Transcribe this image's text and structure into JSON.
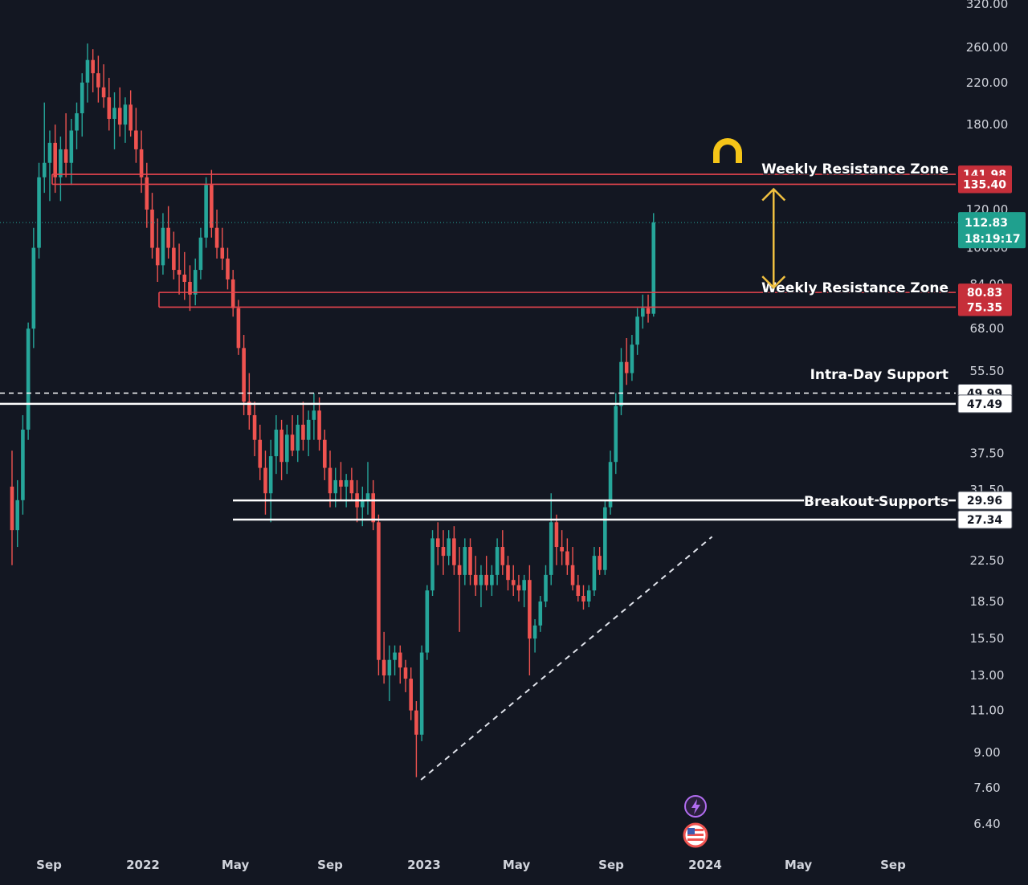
{
  "chart_data": {
    "type": "candlestick",
    "colors": {
      "background": "#131722",
      "up": "#26a69a",
      "down": "#ef5350",
      "resistance": "#e8454e",
      "support": "#ffffff",
      "arrow": "#f0c040",
      "magnet": "#f5c518",
      "last_price": "#26a69a",
      "text": "#d1d4dc"
    },
    "y_scale": "log",
    "ylim": [
      5.6,
      320
    ],
    "y_ticks": [
      "320.00",
      "260.00",
      "220.00",
      "180.00",
      "120.00",
      "100.00",
      "84.00",
      "68.00",
      "55.50",
      "37.50",
      "31.50",
      "22.50",
      "18.50",
      "15.50",
      "13.00",
      "11.00",
      "9.00",
      "7.60",
      "6.40"
    ],
    "x_ticks": [
      "Sep",
      "2022",
      "May",
      "Sep",
      "2023",
      "May",
      "Sep",
      "2024",
      "May",
      "Sep"
    ],
    "x_ticks_bold": [
      "2022",
      "2023",
      "2024"
    ],
    "zones": [
      {
        "label": "Weekly Resistance Zone",
        "high": 141.98,
        "low": 135.4,
        "high_label": "141.98",
        "low_label": "135.40",
        "kind": "resistance"
      },
      {
        "label": "Weekly Resistance Zone",
        "high": 80.83,
        "low": 75.35,
        "high_label": "80.83",
        "low_label": "75.35",
        "kind": "resistance"
      },
      {
        "label": "Intra-Day Support",
        "dashed": 49.99,
        "solid": 47.49,
        "high_label": "49.99",
        "low_label": "47.49",
        "kind": "support"
      },
      {
        "label": "Breakout Supports",
        "high": 29.96,
        "low": 27.34,
        "high_label": "29.96",
        "low_label": "27.34",
        "kind": "support"
      }
    ],
    "last_price": {
      "value": 112.83,
      "price_label": "112.83",
      "countdown": "18:19:17"
    },
    "trendline": {
      "from": {
        "date": "2022-12-28",
        "value": 7.9
      },
      "to": {
        "date": "2024-01-10",
        "value": 25.2
      }
    },
    "arrow": {
      "date": "2024-04-01",
      "from": 135.4,
      "to": 80.83
    },
    "candles": [
      {
        "d": "2021-07-15",
        "o": 32,
        "h": 38,
        "l": 22,
        "c": 26
      },
      {
        "d": "2021-07-22",
        "o": 26,
        "h": 33,
        "l": 24,
        "c": 30
      },
      {
        "d": "2021-07-29",
        "o": 30,
        "h": 45,
        "l": 28,
        "c": 42
      },
      {
        "d": "2021-08-05",
        "o": 42,
        "h": 70,
        "l": 40,
        "c": 68
      },
      {
        "d": "2021-08-12",
        "o": 68,
        "h": 110,
        "l": 62,
        "c": 100
      },
      {
        "d": "2021-08-19",
        "o": 100,
        "h": 150,
        "l": 95,
        "c": 140
      },
      {
        "d": "2021-08-26",
        "o": 140,
        "h": 200,
        "l": 130,
        "c": 150
      },
      {
        "d": "2021-09-02",
        "o": 150,
        "h": 175,
        "l": 125,
        "c": 165
      },
      {
        "d": "2021-09-09",
        "o": 165,
        "h": 180,
        "l": 130,
        "c": 140
      },
      {
        "d": "2021-09-16",
        "o": 140,
        "h": 170,
        "l": 125,
        "c": 160
      },
      {
        "d": "2021-09-23",
        "o": 160,
        "h": 190,
        "l": 140,
        "c": 150
      },
      {
        "d": "2021-09-30",
        "o": 150,
        "h": 185,
        "l": 135,
        "c": 175
      },
      {
        "d": "2021-10-07",
        "o": 175,
        "h": 200,
        "l": 160,
        "c": 190
      },
      {
        "d": "2021-10-14",
        "o": 190,
        "h": 230,
        "l": 170,
        "c": 220
      },
      {
        "d": "2021-10-21",
        "o": 220,
        "h": 265,
        "l": 200,
        "c": 245
      },
      {
        "d": "2021-10-28",
        "o": 245,
        "h": 258,
        "l": 210,
        "c": 230
      },
      {
        "d": "2021-11-04",
        "o": 230,
        "h": 250,
        "l": 200,
        "c": 215
      },
      {
        "d": "2021-11-11",
        "o": 215,
        "h": 240,
        "l": 195,
        "c": 205
      },
      {
        "d": "2021-11-18",
        "o": 205,
        "h": 225,
        "l": 175,
        "c": 185
      },
      {
        "d": "2021-11-25",
        "o": 185,
        "h": 210,
        "l": 160,
        "c": 195
      },
      {
        "d": "2021-12-02",
        "o": 195,
        "h": 215,
        "l": 170,
        "c": 180
      },
      {
        "d": "2021-12-09",
        "o": 180,
        "h": 205,
        "l": 165,
        "c": 198
      },
      {
        "d": "2021-12-16",
        "o": 198,
        "h": 212,
        "l": 170,
        "c": 175
      },
      {
        "d": "2021-12-23",
        "o": 175,
        "h": 195,
        "l": 150,
        "c": 160
      },
      {
        "d": "2021-12-30",
        "o": 160,
        "h": 175,
        "l": 130,
        "c": 140
      },
      {
        "d": "2022-01-06",
        "o": 140,
        "h": 150,
        "l": 110,
        "c": 120
      },
      {
        "d": "2022-01-13",
        "o": 120,
        "h": 130,
        "l": 95,
        "c": 100
      },
      {
        "d": "2022-01-20",
        "o": 100,
        "h": 115,
        "l": 85,
        "c": 92
      },
      {
        "d": "2022-01-27",
        "o": 92,
        "h": 118,
        "l": 88,
        "c": 110
      },
      {
        "d": "2022-02-03",
        "o": 110,
        "h": 122,
        "l": 95,
        "c": 100
      },
      {
        "d": "2022-02-10",
        "o": 100,
        "h": 108,
        "l": 86,
        "c": 90
      },
      {
        "d": "2022-02-17",
        "o": 90,
        "h": 102,
        "l": 80,
        "c": 88
      },
      {
        "d": "2022-02-24",
        "o": 88,
        "h": 98,
        "l": 78,
        "c": 85
      },
      {
        "d": "2022-03-03",
        "o": 85,
        "h": 92,
        "l": 74,
        "c": 80
      },
      {
        "d": "2022-03-10",
        "o": 80,
        "h": 95,
        "l": 76,
        "c": 90
      },
      {
        "d": "2022-03-17",
        "o": 90,
        "h": 110,
        "l": 86,
        "c": 105
      },
      {
        "d": "2022-03-24",
        "o": 105,
        "h": 140,
        "l": 100,
        "c": 135
      },
      {
        "d": "2022-03-31",
        "o": 135,
        "h": 145,
        "l": 105,
        "c": 110
      },
      {
        "d": "2022-04-07",
        "o": 110,
        "h": 120,
        "l": 95,
        "c": 100
      },
      {
        "d": "2022-04-14",
        "o": 100,
        "h": 110,
        "l": 90,
        "c": 95
      },
      {
        "d": "2022-04-21",
        "o": 95,
        "h": 100,
        "l": 82,
        "c": 86
      },
      {
        "d": "2022-04-28",
        "o": 86,
        "h": 90,
        "l": 72,
        "c": 75
      },
      {
        "d": "2022-05-05",
        "o": 75,
        "h": 78,
        "l": 60,
        "c": 62
      },
      {
        "d": "2022-05-12",
        "o": 62,
        "h": 66,
        "l": 45,
        "c": 48
      },
      {
        "d": "2022-05-19",
        "o": 48,
        "h": 55,
        "l": 42,
        "c": 45
      },
      {
        "d": "2022-05-26",
        "o": 45,
        "h": 48,
        "l": 37,
        "c": 40
      },
      {
        "d": "2022-06-02",
        "o": 40,
        "h": 43,
        "l": 33,
        "c": 35
      },
      {
        "d": "2022-06-09",
        "o": 35,
        "h": 38,
        "l": 28,
        "c": 31
      },
      {
        "d": "2022-06-16",
        "o": 31,
        "h": 40,
        "l": 27,
        "c": 37
      },
      {
        "d": "2022-06-23",
        "o": 37,
        "h": 45,
        "l": 34,
        "c": 42
      },
      {
        "d": "2022-06-30",
        "o": 42,
        "h": 44,
        "l": 33,
        "c": 36
      },
      {
        "d": "2022-07-07",
        "o": 36,
        "h": 43,
        "l": 34,
        "c": 41
      },
      {
        "d": "2022-07-14",
        "o": 41,
        "h": 45,
        "l": 37,
        "c": 38
      },
      {
        "d": "2022-07-21",
        "o": 38,
        "h": 45,
        "l": 36,
        "c": 43
      },
      {
        "d": "2022-07-28",
        "o": 43,
        "h": 48,
        "l": 38,
        "c": 40
      },
      {
        "d": "2022-08-04",
        "o": 40,
        "h": 46,
        "l": 37,
        "c": 44
      },
      {
        "d": "2022-08-11",
        "o": 44,
        "h": 50,
        "l": 40,
        "c": 46
      },
      {
        "d": "2022-08-18",
        "o": 46,
        "h": 49,
        "l": 38,
        "c": 40
      },
      {
        "d": "2022-08-25",
        "o": 40,
        "h": 42,
        "l": 33,
        "c": 35
      },
      {
        "d": "2022-09-01",
        "o": 35,
        "h": 38,
        "l": 29,
        "c": 31
      },
      {
        "d": "2022-09-08",
        "o": 31,
        "h": 35,
        "l": 29,
        "c": 33
      },
      {
        "d": "2022-09-15",
        "o": 33,
        "h": 36,
        "l": 30,
        "c": 32
      },
      {
        "d": "2022-09-22",
        "o": 32,
        "h": 34,
        "l": 29,
        "c": 33
      },
      {
        "d": "2022-09-29",
        "o": 33,
        "h": 35,
        "l": 30,
        "c": 31
      },
      {
        "d": "2022-10-06",
        "o": 31,
        "h": 33,
        "l": 27,
        "c": 29
      },
      {
        "d": "2022-10-13",
        "o": 29,
        "h": 32,
        "l": 26.5,
        "c": 30
      },
      {
        "d": "2022-10-20",
        "o": 30,
        "h": 36,
        "l": 28,
        "c": 31
      },
      {
        "d": "2022-10-27",
        "o": 31,
        "h": 33,
        "l": 26,
        "c": 27
      },
      {
        "d": "2022-11-03",
        "o": 27,
        "h": 28,
        "l": 13,
        "c": 14
      },
      {
        "d": "2022-11-10",
        "o": 14,
        "h": 16,
        "l": 12.5,
        "c": 13
      },
      {
        "d": "2022-11-17",
        "o": 13,
        "h": 15,
        "l": 11.5,
        "c": 14
      },
      {
        "d": "2022-11-24",
        "o": 14,
        "h": 15,
        "l": 13,
        "c": 14.5
      },
      {
        "d": "2022-12-01",
        "o": 14.5,
        "h": 15,
        "l": 12.5,
        "c": 13.5
      },
      {
        "d": "2022-12-08",
        "o": 13.5,
        "h": 14,
        "l": 12,
        "c": 12.8
      },
      {
        "d": "2022-12-15",
        "o": 12.8,
        "h": 13.5,
        "l": 10.5,
        "c": 11
      },
      {
        "d": "2022-12-22",
        "o": 11,
        "h": 11.5,
        "l": 8,
        "c": 9.8
      },
      {
        "d": "2022-12-29",
        "o": 9.8,
        "h": 15,
        "l": 9.5,
        "c": 14.5
      },
      {
        "d": "2023-01-05",
        "o": 14.5,
        "h": 20,
        "l": 14,
        "c": 19.5
      },
      {
        "d": "2023-01-12",
        "o": 19.5,
        "h": 26,
        "l": 19,
        "c": 25
      },
      {
        "d": "2023-01-19",
        "o": 25,
        "h": 27,
        "l": 22,
        "c": 24
      },
      {
        "d": "2023-01-26",
        "o": 24,
        "h": 26,
        "l": 21,
        "c": 23
      },
      {
        "d": "2023-02-02",
        "o": 23,
        "h": 26,
        "l": 22,
        "c": 25
      },
      {
        "d": "2023-02-09",
        "o": 25,
        "h": 26.5,
        "l": 21,
        "c": 22
      },
      {
        "d": "2023-02-16",
        "o": 22,
        "h": 24,
        "l": 16,
        "c": 21
      },
      {
        "d": "2023-02-23",
        "o": 21,
        "h": 25,
        "l": 20,
        "c": 24
      },
      {
        "d": "2023-03-02",
        "o": 24,
        "h": 25,
        "l": 20,
        "c": 21
      },
      {
        "d": "2023-03-09",
        "o": 21,
        "h": 23,
        "l": 19,
        "c": 20
      },
      {
        "d": "2023-03-16",
        "o": 20,
        "h": 22,
        "l": 18,
        "c": 21
      },
      {
        "d": "2023-03-23",
        "o": 21,
        "h": 23,
        "l": 19.5,
        "c": 20
      },
      {
        "d": "2023-03-30",
        "o": 20,
        "h": 22,
        "l": 19,
        "c": 21
      },
      {
        "d": "2023-04-06",
        "o": 21,
        "h": 25,
        "l": 20,
        "c": 24
      },
      {
        "d": "2023-04-13",
        "o": 24,
        "h": 26,
        "l": 21,
        "c": 22
      },
      {
        "d": "2023-04-20",
        "o": 22,
        "h": 23,
        "l": 19.5,
        "c": 20.5
      },
      {
        "d": "2023-04-27",
        "o": 20.5,
        "h": 22,
        "l": 19,
        "c": 20
      },
      {
        "d": "2023-05-04",
        "o": 20,
        "h": 21,
        "l": 18.5,
        "c": 19.5
      },
      {
        "d": "2023-05-11",
        "o": 19.5,
        "h": 21,
        "l": 18,
        "c": 20.5
      },
      {
        "d": "2023-05-18",
        "o": 20.5,
        "h": 22,
        "l": 13,
        "c": 15.5
      },
      {
        "d": "2023-05-25",
        "o": 15.5,
        "h": 17,
        "l": 14.5,
        "c": 16.5
      },
      {
        "d": "2023-06-01",
        "o": 16.5,
        "h": 19,
        "l": 16,
        "c": 18.5
      },
      {
        "d": "2023-06-08",
        "o": 18.5,
        "h": 22,
        "l": 18,
        "c": 21
      },
      {
        "d": "2023-06-15",
        "o": 21,
        "h": 31,
        "l": 20,
        "c": 27
      },
      {
        "d": "2023-06-22",
        "o": 27,
        "h": 28,
        "l": 22,
        "c": 24
      },
      {
        "d": "2023-06-29",
        "o": 24,
        "h": 26,
        "l": 22,
        "c": 23.5
      },
      {
        "d": "2023-07-06",
        "o": 23.5,
        "h": 25,
        "l": 21,
        "c": 22
      },
      {
        "d": "2023-07-13",
        "o": 22,
        "h": 24,
        "l": 19.5,
        "c": 20
      },
      {
        "d": "2023-07-20",
        "o": 20,
        "h": 21,
        "l": 18.5,
        "c": 19
      },
      {
        "d": "2023-07-27",
        "o": 19,
        "h": 20,
        "l": 17.8,
        "c": 18.5
      },
      {
        "d": "2023-08-03",
        "o": 18.5,
        "h": 20,
        "l": 18,
        "c": 19.5
      },
      {
        "d": "2023-08-10",
        "o": 19.5,
        "h": 24,
        "l": 19,
        "c": 23
      },
      {
        "d": "2023-08-17",
        "o": 23,
        "h": 24,
        "l": 21,
        "c": 21.5
      },
      {
        "d": "2023-08-24",
        "o": 21.5,
        "h": 30,
        "l": 21,
        "c": 29
      },
      {
        "d": "2023-08-31",
        "o": 29,
        "h": 38,
        "l": 28,
        "c": 36
      },
      {
        "d": "2023-09-07",
        "o": 36,
        "h": 50,
        "l": 34,
        "c": 47
      },
      {
        "d": "2023-09-14",
        "o": 47,
        "h": 62,
        "l": 45,
        "c": 58
      },
      {
        "d": "2023-09-21",
        "o": 58,
        "h": 65,
        "l": 52,
        "c": 55
      },
      {
        "d": "2023-09-28",
        "o": 55,
        "h": 66,
        "l": 53,
        "c": 63
      },
      {
        "d": "2023-10-05",
        "o": 63,
        "h": 75,
        "l": 60,
        "c": 72
      },
      {
        "d": "2023-10-12",
        "o": 72,
        "h": 80,
        "l": 68,
        "c": 75
      },
      {
        "d": "2023-10-19",
        "o": 75,
        "h": 80,
        "l": 70,
        "c": 73
      },
      {
        "d": "2023-10-26",
        "o": 73,
        "h": 118,
        "l": 72,
        "c": 112.83
      }
    ]
  }
}
